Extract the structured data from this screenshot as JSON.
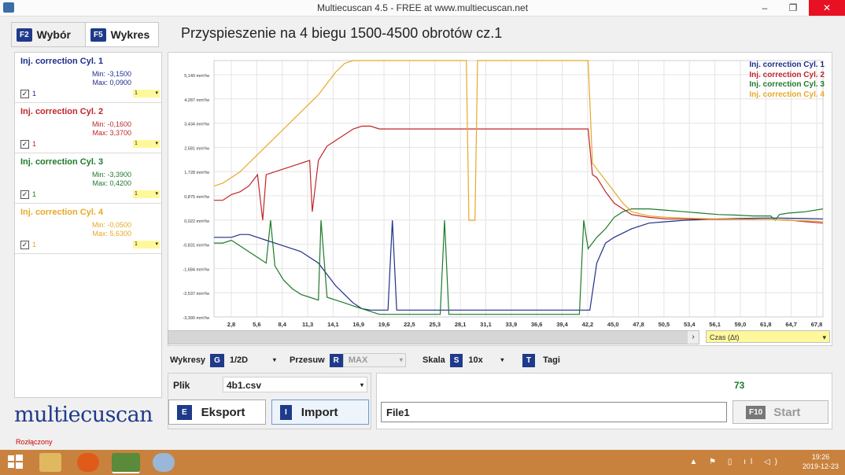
{
  "window": {
    "title": "Multiecuscan 4.5 - FREE at www.multiecuscan.net",
    "min": "–",
    "max": "❐",
    "close": "✕"
  },
  "tabs": [
    {
      "key": "F2",
      "label": "Wybór"
    },
    {
      "key": "F5",
      "label": "Wykres"
    }
  ],
  "page_title": "Przyspieszenie na 4 biegu 1500-4500 obrotów cz.1",
  "series_panel": [
    {
      "name": "Inj. correction Cyl. 1",
      "min": "Min: -3,1500",
      "max": "Max: 0,0900",
      "color": "#1f2e8a",
      "checked": "✓",
      "num": "1",
      "sel": "1",
      "arrow": "▾"
    },
    {
      "name": "Inj. correction Cyl. 2",
      "min": "Min: -0,1600",
      "max": "Max: 3,3700",
      "color": "#c0262a",
      "checked": "✓",
      "num": "1",
      "sel": "1",
      "arrow": "▾"
    },
    {
      "name": "Inj. correction Cyl. 3",
      "min": "Min: -3,3900",
      "max": "Max: 0,4200",
      "color": "#1e7a2a",
      "checked": "✓",
      "num": "1",
      "sel": "1",
      "arrow": "▾"
    },
    {
      "name": "Inj. correction Cyl. 4",
      "min": "Min: -0,0500",
      "max": "Max: 5,6300",
      "color": "#e8a82a",
      "checked": "✓",
      "num": "1",
      "sel": "1",
      "arrow": "▾"
    }
  ],
  "logo": "multiecuscan",
  "chart_data": {
    "type": "line",
    "x_ticks": [
      "2,8",
      "5,6",
      "8,4",
      "11,3",
      "14,1",
      "16,9",
      "19,6",
      "22,5",
      "25,3",
      "28,1",
      "31,1",
      "33,9",
      "36,6",
      "39,4",
      "42,2",
      "45,0",
      "47,8",
      "50,5",
      "53,4",
      "56,1",
      "59,0",
      "61,8",
      "64,7",
      "67,8"
    ],
    "y_ticks": [
      "5,140 mm³/w",
      "4,287 mm³/w",
      "3,434 mm³/w",
      "2,581 mm³/w",
      "1,728 mm³/w",
      "0,875 mm³/w",
      "0,022 mm³/w",
      "-0,831 mm³/w",
      "-1,684 mm³/w",
      "-2,537 mm³/w",
      "-3,390 mm³/w"
    ],
    "ylim": [
      -3.39,
      5.6
    ],
    "xlim": [
      0,
      70
    ],
    "x_axis_label": "Czas (Δt)",
    "series": [
      {
        "name": "Inj. correction Cyl. 1",
        "color": "#1f2e8a",
        "x": [
          0,
          1,
          2,
          3,
          4,
          5,
          6,
          7,
          8,
          9,
          10,
          11,
          12,
          13,
          14,
          15,
          16,
          17,
          18,
          19,
          20,
          20.5,
          21,
          22,
          25,
          28,
          31,
          34,
          37,
          40,
          42,
          43,
          43.2,
          44,
          45,
          46,
          48,
          50,
          52,
          54,
          56,
          58,
          60,
          62,
          64,
          66,
          68,
          70
        ],
        "y": [
          -0.6,
          -0.6,
          -0.6,
          -0.5,
          -0.5,
          -0.6,
          -0.7,
          -0.8,
          -0.9,
          -1.0,
          -1.1,
          -1.3,
          -1.5,
          -1.9,
          -2.3,
          -2.6,
          -2.9,
          -3.1,
          -3.15,
          -3.15,
          -3.15,
          0.0,
          -3.15,
          -3.15,
          -3.15,
          -3.15,
          -3.15,
          -3.15,
          -3.15,
          -3.15,
          -3.15,
          -3.15,
          -3.15,
          -1.5,
          -0.8,
          -0.6,
          -0.3,
          -0.1,
          -0.05,
          0.0,
          0.02,
          0.05,
          0.06,
          0.07,
          0.08,
          0.07,
          0.06,
          0.05
        ]
      },
      {
        "name": "Inj. correction Cyl. 2",
        "color": "#c0262a",
        "x": [
          0,
          1,
          2,
          3,
          4,
          5,
          5.6,
          6,
          7,
          8,
          9,
          10,
          11,
          11.3,
          12,
          13,
          14,
          15,
          16,
          17,
          18,
          19,
          20,
          22,
          25,
          28,
          31,
          34,
          37,
          40,
          42,
          43,
          43.5,
          44,
          45,
          46,
          47,
          48,
          50,
          52,
          54,
          56,
          58,
          60,
          62,
          64,
          66,
          68,
          70
        ],
        "y": [
          0.7,
          0.7,
          0.9,
          1.0,
          1.2,
          1.6,
          0.0,
          1.6,
          1.7,
          1.8,
          1.9,
          2.0,
          2.1,
          0.3,
          2.1,
          2.6,
          2.8,
          3.0,
          3.2,
          3.3,
          3.3,
          3.2,
          3.2,
          3.2,
          3.2,
          3.2,
          3.2,
          3.2,
          3.2,
          3.2,
          3.2,
          3.2,
          1.6,
          1.5,
          1.0,
          0.6,
          0.4,
          0.2,
          0.1,
          0.05,
          0.05,
          0.04,
          0.03,
          0.03,
          0.02,
          0.02,
          0.01,
          -0.05,
          -0.1
        ]
      },
      {
        "name": "Inj. correction Cyl. 3",
        "color": "#1e7a2a",
        "x": [
          0,
          1,
          2,
          3,
          4,
          5,
          6,
          6.5,
          7,
          8,
          9,
          10,
          11,
          12,
          12.3,
          13,
          14,
          15,
          16,
          17,
          18,
          19,
          20,
          22,
          25,
          26,
          26.5,
          27,
          28,
          31,
          34,
          37,
          40,
          42,
          42.5,
          43,
          44,
          45,
          46,
          47,
          48,
          50,
          52,
          54,
          56,
          58,
          60,
          62,
          64,
          64.5,
          65,
          66,
          68,
          70
        ],
        "y": [
          -0.8,
          -0.8,
          -0.7,
          -0.9,
          -1.1,
          -1.3,
          -1.5,
          0.0,
          -1.6,
          -2.1,
          -2.4,
          -2.6,
          -2.7,
          -2.8,
          0.0,
          -2.7,
          -2.8,
          -2.9,
          -3.0,
          -3.1,
          -3.2,
          -3.3,
          -3.3,
          -3.3,
          -3.3,
          -3.3,
          0.0,
          -3.3,
          -3.3,
          -3.3,
          -3.3,
          -3.3,
          -3.3,
          -3.3,
          0.0,
          -1.0,
          -0.6,
          -0.3,
          0.1,
          0.3,
          0.4,
          0.4,
          0.35,
          0.3,
          0.25,
          0.2,
          0.18,
          0.15,
          0.15,
          0.0,
          0.2,
          0.25,
          0.3,
          0.4
        ]
      },
      {
        "name": "Inj. correction Cyl. 4",
        "color": "#e8a82a",
        "x": [
          0,
          1,
          2,
          3,
          4,
          5,
          6,
          7,
          8,
          9,
          10,
          11,
          12,
          13,
          14,
          15,
          16,
          16.9,
          18,
          20,
          22,
          25,
          28,
          29,
          29.3,
          29.8,
          30,
          30.3,
          31,
          34,
          37,
          40,
          42,
          43,
          43.5,
          44,
          45,
          46,
          47,
          48,
          50,
          52,
          54,
          56,
          58,
          60,
          62,
          64,
          66,
          68,
          70
        ],
        "y": [
          1.2,
          1.3,
          1.5,
          1.7,
          2.0,
          2.3,
          2.6,
          2.9,
          3.2,
          3.5,
          3.8,
          4.1,
          4.4,
          4.8,
          5.2,
          5.5,
          5.6,
          5.6,
          5.6,
          5.6,
          5.6,
          5.6,
          5.6,
          5.6,
          0.0,
          0.0,
          0.0,
          5.6,
          5.6,
          5.6,
          5.6,
          5.6,
          5.6,
          5.6,
          2.0,
          1.8,
          1.4,
          1.0,
          0.6,
          0.3,
          0.15,
          0.1,
          0.08,
          0.06,
          0.05,
          0.04,
          0.03,
          0.02,
          0.0,
          -0.02,
          -0.05
        ]
      }
    ]
  },
  "scroll_arrow": "›",
  "time_axis": {
    "label": "Czas (Δt)",
    "arrow": "▾"
  },
  "controls": {
    "wykresy_label": "Wykresy",
    "wykresy_key": "G",
    "wykresy_value": "1/2D",
    "przesuw_label": "Przesuw",
    "przesuw_key": "R",
    "przesuw_value": "MAX",
    "skala_label": "Skala",
    "skala_key": "S",
    "skala_value": "10x",
    "tagi_key": "T",
    "tagi_label": "Tagi",
    "arrow": "▾"
  },
  "file": {
    "label": "Plik",
    "value": "4b1.csv",
    "arrow": "▾"
  },
  "buttons": {
    "export_key": "E",
    "export_label": "Eksport",
    "import_key": "I",
    "import_label": "Import",
    "start_key": "F10",
    "start_label": "Start"
  },
  "run": {
    "counter": "73",
    "file_input": "File1"
  },
  "status": "Rozłączony",
  "taskbar": {
    "time": "19:26",
    "date": "2019-12-23",
    "tray": "▲ ⚑ ▯ ıl ◁)"
  }
}
